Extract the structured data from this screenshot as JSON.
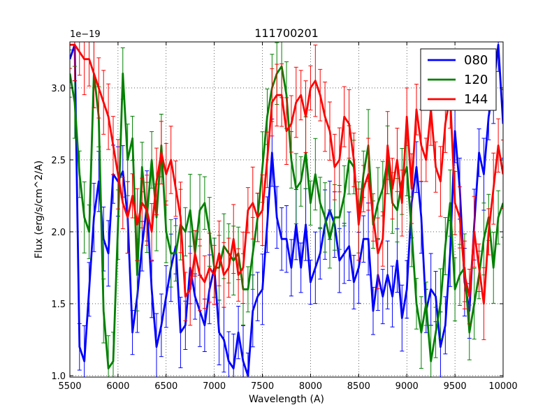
{
  "chart_data": {
    "type": "line",
    "title": "111700201",
    "xlabel": "Wavelength (A)",
    "ylabel": "Flux (erg/s/cm^2/A)",
    "y_offset_label": "1e−19",
    "xlim": [
      5500,
      10000
    ],
    "ylim": [
      0.99,
      3.32
    ],
    "xticks": [
      5500,
      6000,
      6500,
      7000,
      7500,
      8000,
      8500,
      9000,
      9500,
      10000
    ],
    "xtick_labels": [
      "5500",
      "6000",
      "6500",
      "7000",
      "7500",
      "8000",
      "8500",
      "9000",
      "9500",
      "10000"
    ],
    "yticks": [
      1.0,
      1.5,
      2.0,
      2.5,
      3.0
    ],
    "ytick_labels": [
      "1.0",
      "1.5",
      "2.0",
      "2.5",
      "3.0"
    ],
    "grid": true,
    "legend_position": "top-right",
    "x": [
      5500,
      5550,
      5600,
      5650,
      5700,
      5750,
      5800,
      5850,
      5900,
      5950,
      6000,
      6050,
      6100,
      6150,
      6200,
      6250,
      6300,
      6350,
      6400,
      6450,
      6500,
      6550,
      6600,
      6650,
      6700,
      6750,
      6800,
      6850,
      6900,
      6950,
      7000,
      7050,
      7100,
      7150,
      7200,
      7250,
      7300,
      7350,
      7400,
      7450,
      7500,
      7550,
      7600,
      7650,
      7700,
      7750,
      7800,
      7850,
      7900,
      7950,
      8000,
      8050,
      8100,
      8150,
      8200,
      8250,
      8300,
      8350,
      8400,
      8450,
      8500,
      8550,
      8600,
      8650,
      8700,
      8750,
      8800,
      8850,
      8900,
      8950,
      9000,
      9050,
      9100,
      9150,
      9200,
      9250,
      9300,
      9350,
      9400,
      9450,
      9500,
      9550,
      9600,
      9650,
      9700,
      9750,
      9800,
      9850,
      9900,
      9950,
      10000
    ],
    "series": [
      {
        "name": "080",
        "color": "#0000ff",
        "values": [
          3.2,
          3.3,
          1.2,
          1.1,
          1.6,
          2.1,
          2.35,
          1.95,
          1.85,
          2.4,
          2.35,
          2.42,
          2.1,
          1.3,
          1.55,
          1.9,
          2.18,
          1.6,
          1.2,
          1.35,
          1.55,
          1.75,
          1.9,
          1.3,
          1.35,
          1.75,
          1.55,
          1.45,
          1.35,
          1.6,
          1.75,
          1.3,
          1.25,
          1.1,
          1.05,
          1.3,
          1.1,
          1.0,
          1.45,
          1.55,
          1.6,
          2.05,
          2.55,
          2.1,
          1.95,
          1.95,
          1.75,
          2.05,
          1.75,
          2.05,
          1.65,
          1.75,
          1.85,
          2.05,
          2.15,
          2.05,
          1.8,
          1.85,
          1.9,
          1.65,
          1.75,
          1.95,
          1.95,
          1.45,
          1.7,
          1.55,
          1.7,
          1.55,
          1.8,
          1.4,
          1.6,
          2.2,
          2.45,
          2.1,
          1.45,
          1.6,
          1.55,
          1.2,
          1.35,
          1.85,
          2.7,
          2.3,
          1.65,
          1.45,
          2.05,
          2.55,
          2.4,
          2.8,
          3.0,
          3.3,
          2.75
        ]
      },
      {
        "name": "120",
        "color": "#008000",
        "values": [
          3.1,
          2.9,
          2.4,
          2.1,
          2.0,
          3.1,
          2.8,
          1.45,
          1.05,
          1.1,
          2.05,
          3.1,
          2.5,
          2.65,
          1.7,
          2.45,
          2.1,
          2.5,
          2.1,
          2.6,
          2.0,
          1.85,
          1.85,
          2.05,
          2.0,
          2.15,
          1.85,
          2.15,
          2.2,
          2.0,
          1.75,
          1.75,
          1.9,
          1.85,
          1.8,
          1.85,
          1.6,
          1.6,
          1.85,
          2.1,
          2.45,
          2.8,
          3.0,
          3.1,
          3.15,
          2.95,
          2.5,
          2.3,
          2.35,
          2.55,
          2.2,
          2.4,
          2.2,
          2.1,
          1.95,
          2.1,
          2.1,
          2.25,
          2.5,
          2.45,
          2.1,
          2.4,
          2.6,
          2.05,
          2.2,
          2.3,
          2.5,
          2.2,
          2.15,
          2.35,
          2.45,
          2.0,
          1.5,
          1.3,
          1.5,
          1.1,
          1.3,
          1.5,
          1.9,
          2.2,
          1.6,
          1.7,
          1.75,
          1.3,
          1.5,
          1.7,
          1.95,
          2.1,
          1.75,
          2.1,
          2.2
        ]
      },
      {
        "name": "144",
        "color": "#ff0000",
        "values": [
          3.3,
          3.3,
          3.25,
          3.2,
          3.2,
          3.1,
          3.0,
          2.9,
          2.8,
          2.6,
          2.4,
          2.2,
          2.1,
          2.25,
          2.05,
          2.2,
          2.15,
          2.0,
          2.35,
          2.55,
          2.4,
          2.5,
          2.3,
          2.1,
          1.55,
          1.6,
          1.85,
          1.7,
          1.65,
          1.75,
          1.7,
          1.85,
          1.7,
          1.75,
          1.95,
          1.7,
          1.75,
          2.15,
          2.2,
          2.1,
          2.15,
          2.5,
          2.9,
          2.95,
          2.95,
          2.7,
          2.75,
          2.9,
          2.95,
          2.8,
          3.0,
          3.05,
          2.95,
          2.8,
          2.7,
          2.45,
          2.5,
          2.8,
          2.75,
          2.5,
          2.05,
          2.3,
          2.4,
          2.1,
          1.85,
          1.95,
          2.6,
          2.3,
          2.5,
          2.2,
          2.8,
          2.3,
          2.85,
          2.6,
          2.5,
          2.85,
          2.45,
          2.35,
          2.75,
          2.95,
          2.2,
          2.1,
          1.7,
          1.55,
          2.0,
          1.75,
          1.5,
          2.0,
          2.3,
          2.6,
          2.4
        ]
      }
    ]
  }
}
